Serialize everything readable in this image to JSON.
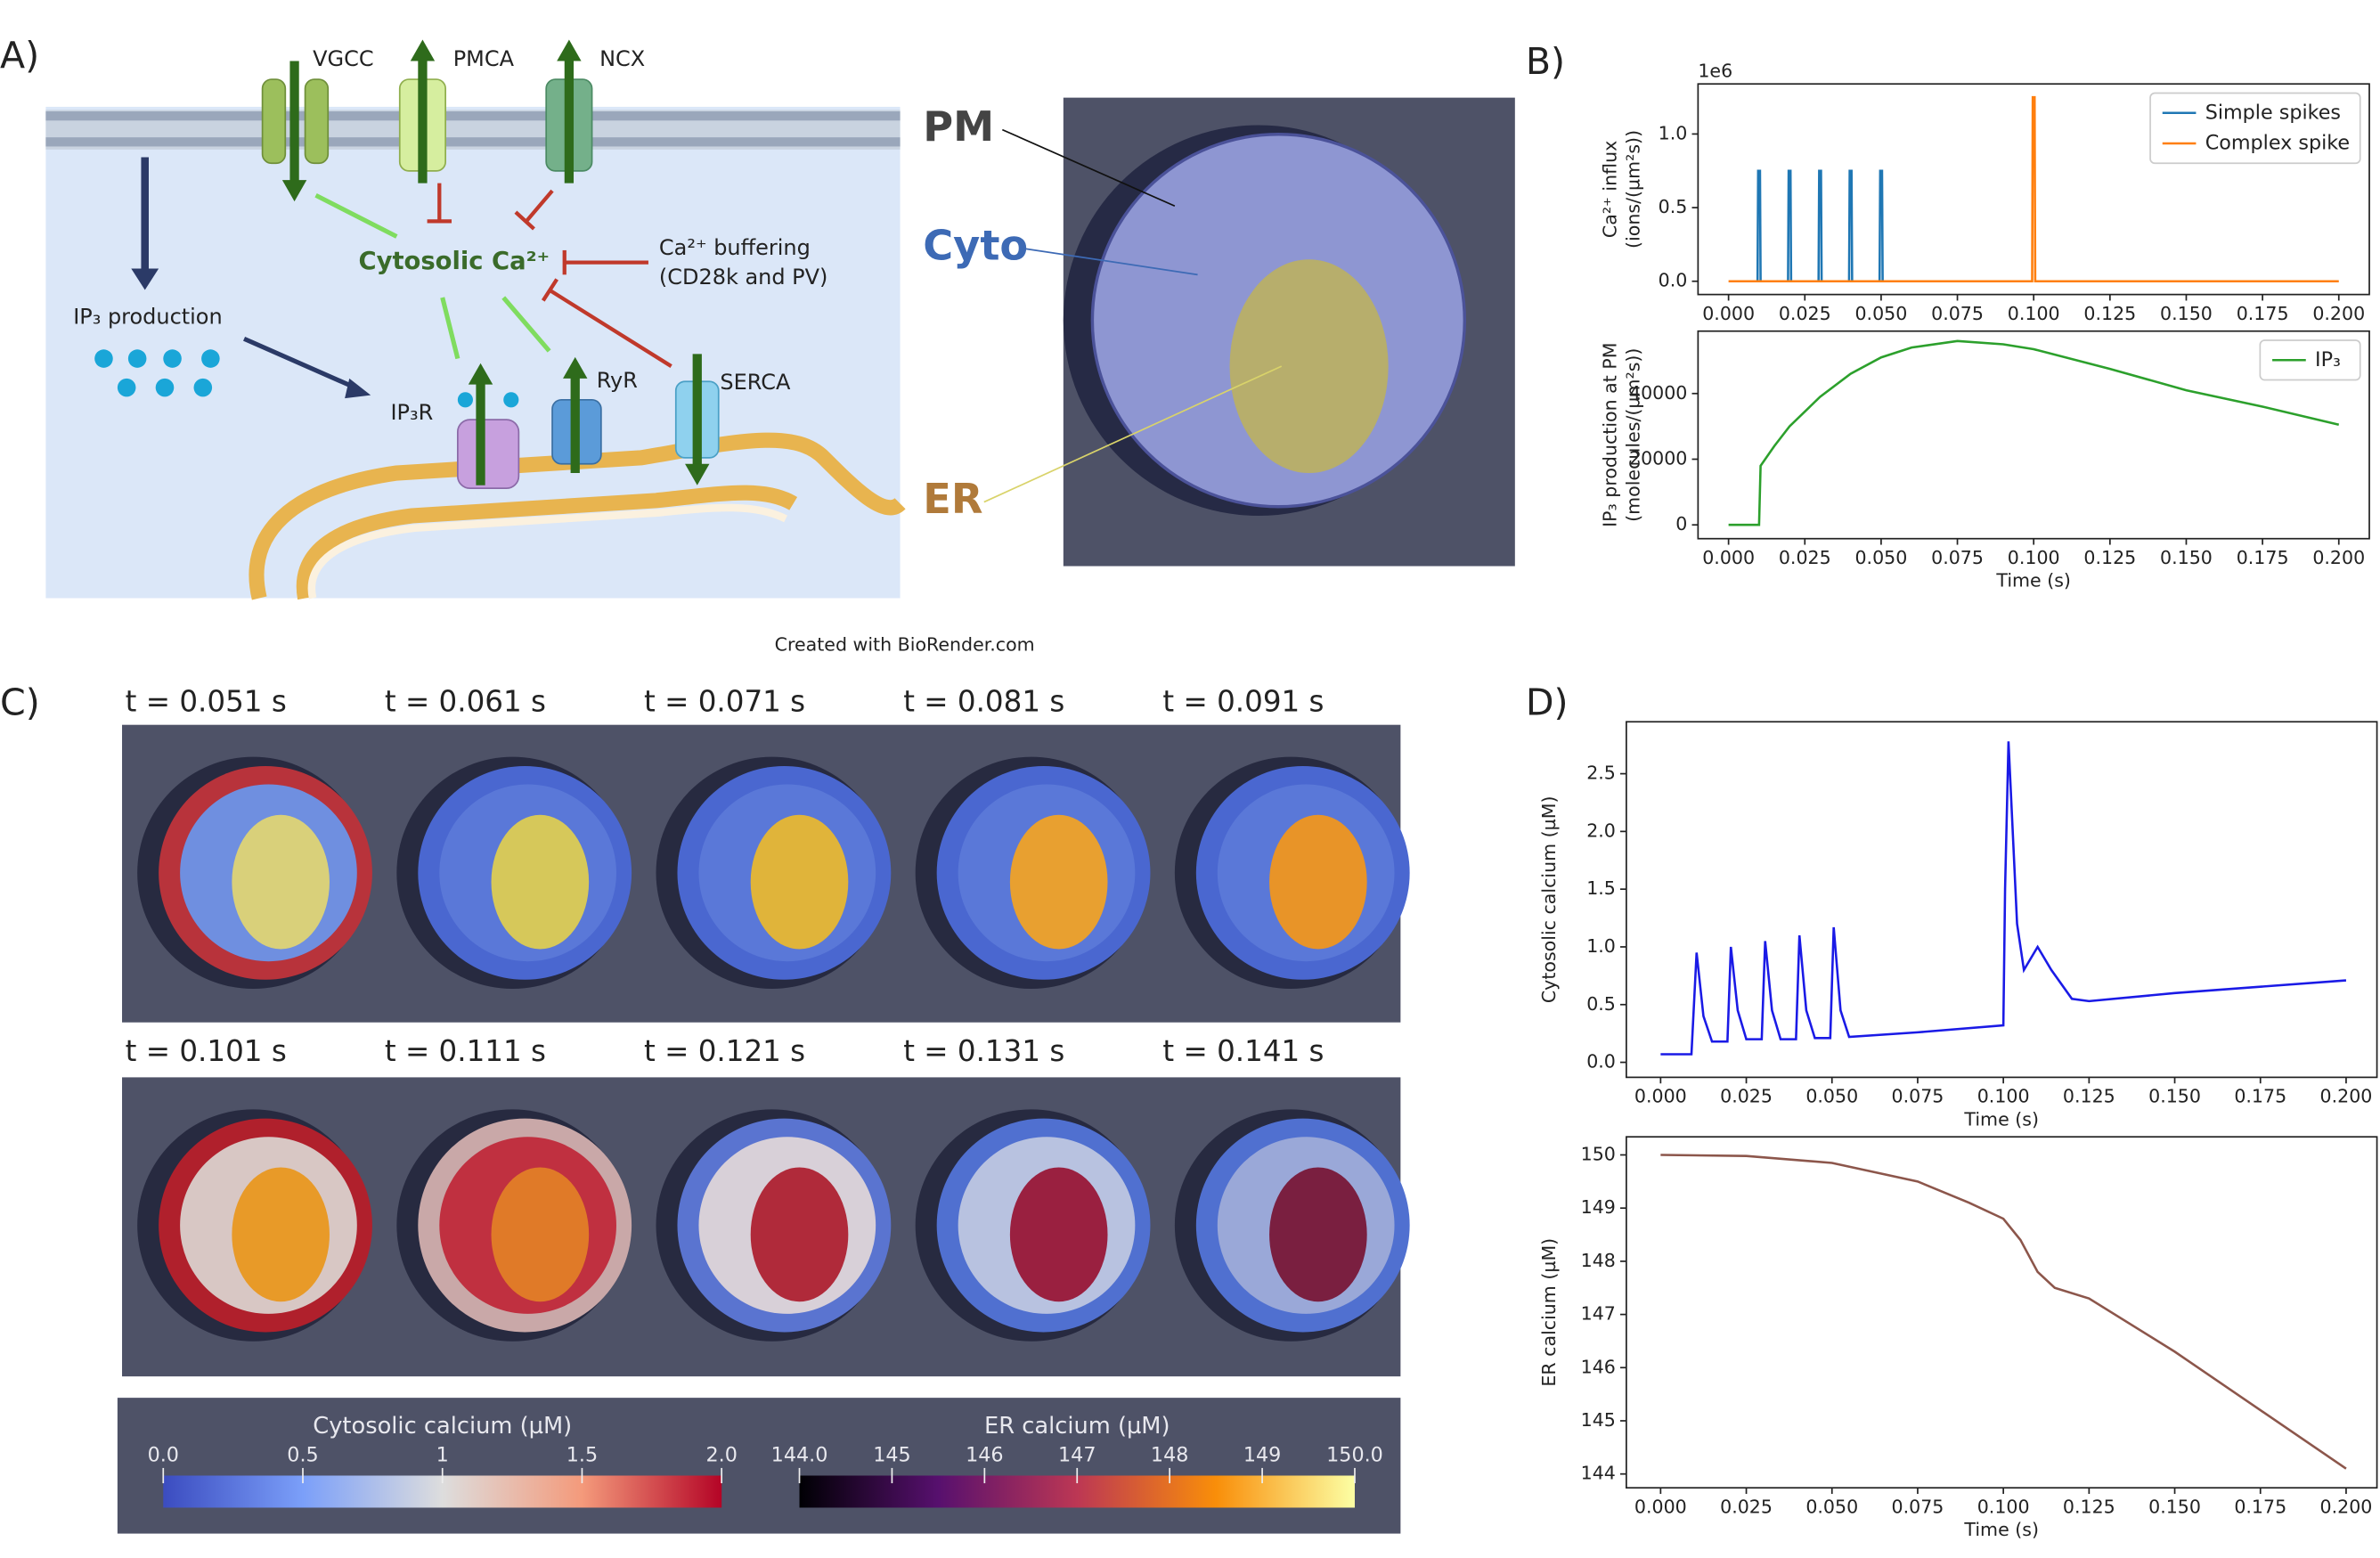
{
  "panel_labels": [
    "A)",
    "B)",
    "C)",
    "D)"
  ],
  "diagram": {
    "channels": [
      "VGCC",
      "PMCA",
      "NCX"
    ],
    "cytosolic": "Cytosolic Ca²⁺",
    "buffering": [
      "Ca²⁺ buffering",
      "(CD28k and PV)"
    ],
    "ip3_production": "IP₃ production",
    "receptors": [
      "IP₃R",
      "RyR",
      "SERCA"
    ],
    "credit": "Created with BioRender.com"
  },
  "mesh_labels": [
    "PM",
    "Cyto",
    "ER"
  ],
  "snapshots": {
    "times": [
      "t = 0.051 s",
      "t = 0.061 s",
      "t = 0.071 s",
      "t = 0.081 s",
      "t = 0.091 s",
      "t = 0.101 s",
      "t = 0.111 s",
      "t = 0.121 s",
      "t = 0.131 s",
      "t = 0.141 s"
    ]
  },
  "colorbars": [
    {
      "label": "Cytosolic calcium (µM)",
      "range": [
        0,
        2
      ],
      "ticks": [
        {
          "value": 0,
          "label": "0.0"
        },
        {
          "value": 0.5,
          "label": "0.5"
        },
        1,
        {
          "value": 1.5,
          "label": "1.5"
        },
        {
          "value": 2,
          "label": "2.0"
        }
      ]
    },
    {
      "label": "ER calcium (µM)",
      "range": [
        144,
        150
      ],
      "ticks": [
        {
          "value": 144,
          "label": "144.0"
        },
        145,
        146,
        147,
        148,
        149,
        {
          "value": 150,
          "label": "150.0"
        }
      ]
    }
  ],
  "chart_data": [
    {
      "type": "line",
      "ylabel": [
        "Ca²⁺ influx",
        "(ions/(µm²s))"
      ],
      "offset_text": "1e6",
      "legend": "upper right",
      "xlim": [
        -0.01,
        0.21
      ],
      "ylim": [
        -0.09,
        1.34
      ],
      "xticks": [
        {
          "value": 0,
          "label": "0.000"
        },
        {
          "value": 0.025,
          "label": "0.025"
        },
        {
          "value": 0.05,
          "label": "0.050"
        },
        {
          "value": 0.075,
          "label": "0.075"
        },
        {
          "value": 0.1,
          "label": "0.100"
        },
        {
          "value": 0.125,
          "label": "0.125"
        },
        {
          "value": 0.15,
          "label": "0.150"
        },
        {
          "value": 0.175,
          "label": "0.175"
        },
        {
          "value": 0.2,
          "label": "0.200"
        }
      ],
      "yticks": [
        {
          "value": 0,
          "label": "0.0"
        },
        {
          "value": 0.5,
          "label": "0.5"
        },
        {
          "value": 1,
          "label": "1.0"
        }
      ],
      "series": [
        {
          "name": "Simple spikes",
          "color": "#1f77b4",
          "x": [
            0.0095,
            0.0097,
            0.0103,
            0.0105,
            0.0195,
            0.0197,
            0.0203,
            0.0205,
            0.0295,
            0.0297,
            0.0303,
            0.0305,
            0.0395,
            0.0397,
            0.0403,
            0.0405,
            0.0495,
            0.0497,
            0.0503,
            0.0505
          ],
          "values": [
            0,
            0.75,
            0.75,
            0,
            0,
            0.75,
            0.75,
            0,
            0,
            0.75,
            0.75,
            0,
            0,
            0.75,
            0.75,
            0,
            0,
            0.75,
            0.75,
            0
          ]
        },
        {
          "name": "Complex spike",
          "color": "#ff7f0e",
          "x": [
            0,
            0.0995,
            0.0997,
            0.1003,
            0.1005,
            0.2
          ],
          "values": [
            0,
            0,
            1.25,
            1.25,
            0,
            0
          ]
        }
      ]
    },
    {
      "type": "line",
      "ylabel": [
        "IP₃ production at PM",
        "(molecules/(µm²s))"
      ],
      "xlabel": "Time (s)",
      "legend": "upper right",
      "xlim": [
        -0.01,
        0.21
      ],
      "ylim": [
        -4200,
        59000
      ],
      "xticks": [
        {
          "value": 0,
          "label": "0.000"
        },
        {
          "value": 0.025,
          "label": "0.025"
        },
        {
          "value": 0.05,
          "label": "0.050"
        },
        {
          "value": 0.075,
          "label": "0.075"
        },
        {
          "value": 0.1,
          "label": "0.100"
        },
        {
          "value": 0.125,
          "label": "0.125"
        },
        {
          "value": 0.15,
          "label": "0.150"
        },
        {
          "value": 0.175,
          "label": "0.175"
        },
        {
          "value": 0.2,
          "label": "0.200"
        }
      ],
      "yticks": [
        0,
        20000,
        40000
      ],
      "series": [
        {
          "name": "IP₃",
          "color": "#2ca02c",
          "x": [
            0,
            0.01,
            0.0105,
            0.015,
            0.02,
            0.03,
            0.04,
            0.05,
            0.06,
            0.075,
            0.09,
            0.1,
            0.125,
            0.15,
            0.175,
            0.2
          ],
          "values": [
            0,
            0,
            18000,
            24000,
            30000,
            39000,
            46000,
            51000,
            54000,
            56000,
            55000,
            53500,
            47500,
            41000,
            36000,
            30500
          ]
        }
      ]
    },
    {
      "type": "line",
      "ylabel": [
        "Cytosolic calcium (µM)"
      ],
      "xlabel": "Time (s)",
      "color": "#1a1ae6",
      "xlim": [
        -0.01,
        0.209
      ],
      "ylim": [
        -0.13,
        2.95
      ],
      "xticks": [
        {
          "value": 0,
          "label": "0.000"
        },
        {
          "value": 0.025,
          "label": "0.025"
        },
        {
          "value": 0.05,
          "label": "0.050"
        },
        {
          "value": 0.075,
          "label": "0.075"
        },
        {
          "value": 0.1,
          "label": "0.100"
        },
        {
          "value": 0.125,
          "label": "0.125"
        },
        {
          "value": 0.15,
          "label": "0.150"
        },
        {
          "value": 0.175,
          "label": "0.175"
        },
        {
          "value": 0.2,
          "label": "0.200"
        }
      ],
      "yticks": [
        {
          "value": 0,
          "label": "0.0"
        },
        {
          "value": 0.5,
          "label": "0.5"
        },
        {
          "value": 1,
          "label": "1.0"
        },
        {
          "value": 1.5,
          "label": "1.5"
        },
        {
          "value": 2,
          "label": "2.0"
        },
        {
          "value": 2.5,
          "label": "2.5"
        }
      ],
      "x": [
        0,
        0.009,
        0.0105,
        0.0125,
        0.015,
        0.0195,
        0.0205,
        0.0225,
        0.025,
        0.0295,
        0.0305,
        0.0325,
        0.035,
        0.0395,
        0.0405,
        0.0425,
        0.045,
        0.0495,
        0.0505,
        0.0525,
        0.055,
        0.075,
        0.1,
        0.1005,
        0.1015,
        0.104,
        0.106,
        0.11,
        0.114,
        0.12,
        0.125,
        0.15,
        0.2
      ],
      "values": [
        0.07,
        0.07,
        0.95,
        0.4,
        0.18,
        0.18,
        1.0,
        0.45,
        0.2,
        0.2,
        1.05,
        0.45,
        0.2,
        0.2,
        1.1,
        0.45,
        0.21,
        0.21,
        1.17,
        0.45,
        0.22,
        0.26,
        0.32,
        1.5,
        2.78,
        1.2,
        0.8,
        1.0,
        0.8,
        0.55,
        0.53,
        0.6,
        0.71
      ]
    },
    {
      "type": "line",
      "ylabel": [
        "ER calcium (µM)"
      ],
      "xlabel": "Time (s)",
      "color": "#8c564b",
      "xlim": [
        -0.01,
        0.209
      ],
      "ylim": [
        143.74,
        150.34
      ],
      "xticks": [
        {
          "value": 0,
          "label": "0.000"
        },
        {
          "value": 0.025,
          "label": "0.025"
        },
        {
          "value": 0.05,
          "label": "0.050"
        },
        {
          "value": 0.075,
          "label": "0.075"
        },
        {
          "value": 0.1,
          "label": "0.100"
        },
        {
          "value": 0.125,
          "label": "0.125"
        },
        {
          "value": 0.15,
          "label": "0.150"
        },
        {
          "value": 0.175,
          "label": "0.175"
        },
        {
          "value": 0.2,
          "label": "0.200"
        }
      ],
      "yticks": [
        144,
        145,
        146,
        147,
        148,
        149,
        150
      ],
      "x": [
        0,
        0.025,
        0.05,
        0.075,
        0.09,
        0.1,
        0.105,
        0.11,
        0.115,
        0.125,
        0.15,
        0.175,
        0.2
      ],
      "values": [
        150,
        149.98,
        149.85,
        149.5,
        149.1,
        148.8,
        148.4,
        147.8,
        147.5,
        147.3,
        146.3,
        145.2,
        144.1
      ]
    }
  ]
}
